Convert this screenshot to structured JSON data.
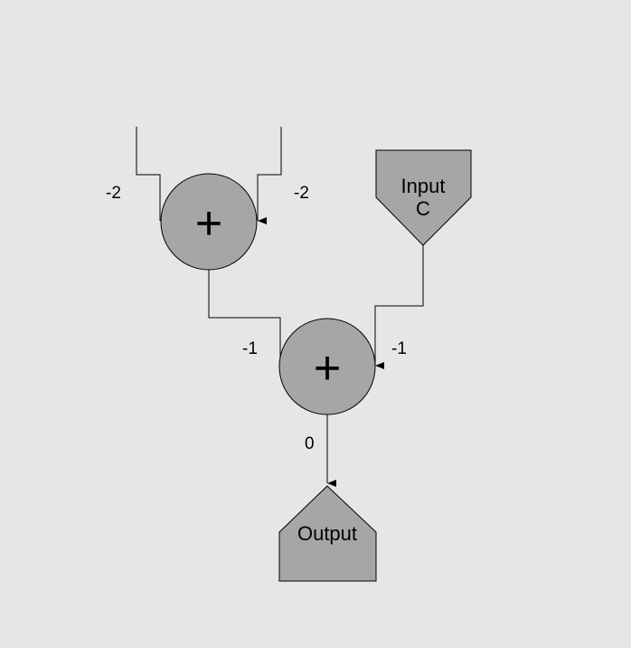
{
  "nodes": {
    "adder_top": {
      "symbol": "+"
    },
    "adder_bottom": {
      "symbol": "+"
    },
    "input_c": {
      "label_line1": "Input",
      "label_line2": "C"
    },
    "output": {
      "label": "Output"
    }
  },
  "edge_labels": {
    "top_left_in": "-2",
    "top_right_in": "-2",
    "bottom_left_in": "-1",
    "bottom_right_in": "-1",
    "bottom_out": "0"
  }
}
